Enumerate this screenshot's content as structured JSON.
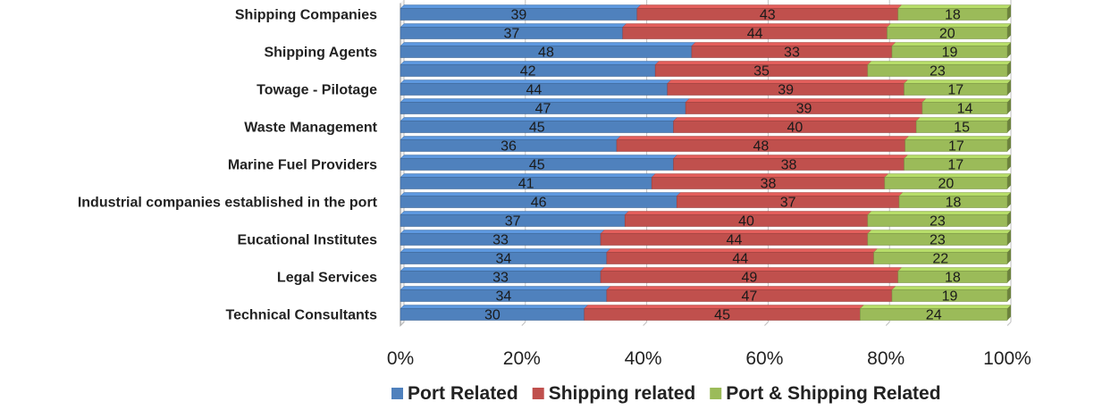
{
  "chart_data": {
    "type": "bar",
    "orientation": "horizontal",
    "stacked": "percent",
    "categories": [
      "Shipping Companies",
      "",
      "Shipping Agents",
      "",
      "Towage - Pilotage",
      "",
      "Waste Management",
      "",
      "Marine Fuel Providers",
      "",
      "Industrial companies established in the port",
      "",
      "Eucational Institutes",
      "",
      "Legal Services",
      "",
      "Technical Consultants"
    ],
    "series": [
      {
        "name": "Port Related",
        "color": "#4F81BD",
        "values": [
          39,
          37,
          48,
          42,
          44,
          47,
          45,
          36,
          45,
          41,
          46,
          37,
          33,
          34,
          33,
          34,
          30
        ]
      },
      {
        "name": "Shipping related",
        "color": "#C0504D",
        "values": [
          43,
          44,
          33,
          35,
          39,
          39,
          40,
          48,
          38,
          38,
          37,
          40,
          44,
          44,
          49,
          47,
          45
        ]
      },
      {
        "name": "Port & Shipping Related",
        "color": "#9BBB59",
        "values": [
          18,
          20,
          19,
          23,
          17,
          14,
          15,
          17,
          17,
          20,
          18,
          23,
          23,
          22,
          18,
          19,
          24
        ]
      }
    ],
    "x_ticks": [
      "0%",
      "20%",
      "40%",
      "60%",
      "80%",
      "100%"
    ],
    "xlim": [
      0,
      100
    ],
    "legend_position": "bottom",
    "grid": true,
    "data_labels": true
  }
}
